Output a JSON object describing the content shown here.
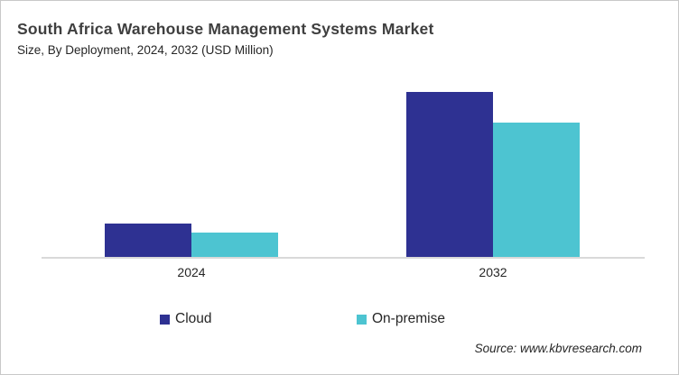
{
  "header": {
    "title": "South Africa Warehouse Management Systems Market",
    "subtitle": "Size, By Deployment, 2024, 2032 (USD Million)"
  },
  "chart_data": {
    "type": "bar",
    "categories": [
      "2024",
      "2032"
    ],
    "series": [
      {
        "name": "Cloud",
        "color": "#2e3192",
        "values": [
          37,
          183
        ]
      },
      {
        "name": "On-premise",
        "color": "#4dc4d1",
        "values": [
          27,
          149
        ]
      }
    ],
    "title": "South Africa Warehouse Management Systems Market",
    "subtitle": "Size, By Deployment, 2024, 2032 (USD Million)",
    "xlabel": "",
    "ylabel": "",
    "ylim": [
      0,
      205
    ],
    "value_axis_visible": false,
    "gridlines": false,
    "legend_position": "bottom"
  },
  "legend": {
    "items": [
      {
        "label": "Cloud",
        "color": "#2e3192"
      },
      {
        "label": "On-premise",
        "color": "#4dc4d1"
      }
    ]
  },
  "footer": {
    "source": "Source: www.kbvresearch.com"
  },
  "colors": {
    "cloud": "#2e3192",
    "on_premise": "#4dc4d1",
    "axis_line": "#d9d9d9",
    "title_text": "#3f3f3f",
    "body_text": "#262626",
    "border": "#c9c9c9",
    "background": "#ffffff"
  }
}
